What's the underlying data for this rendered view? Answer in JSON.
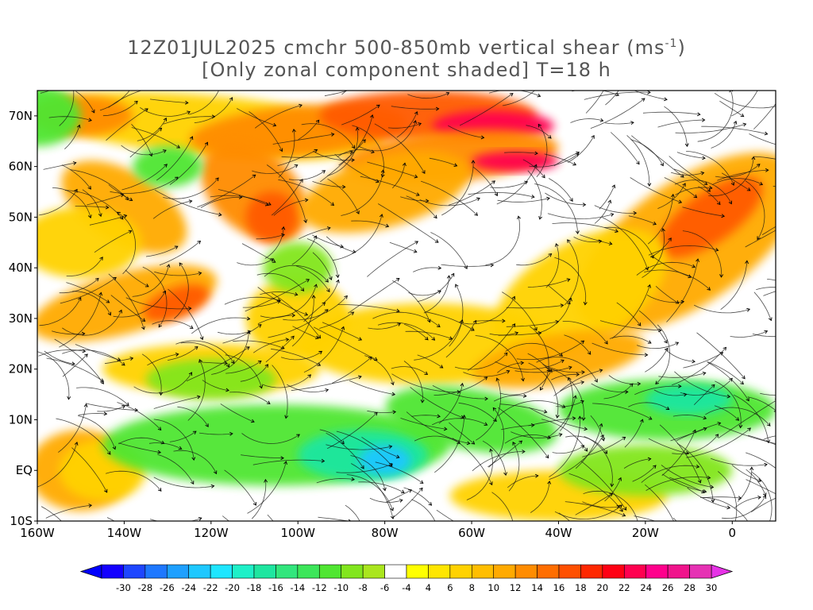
{
  "title": {
    "line1": "12Z01JUL2025 cmchr 500-850mb vertical shear (ms",
    "line1_sup": "-1",
    "line1_end": ")",
    "line2": "[Only zonal component shaded] T=18 h"
  },
  "axes": {
    "lat_labels": [
      "70N",
      "60N",
      "50N",
      "40N",
      "30N",
      "20N",
      "10N",
      "EQ",
      "10S"
    ],
    "lon_labels": [
      "160W",
      "140W",
      "120W",
      "100W",
      "80W",
      "60W",
      "40W",
      "20W",
      "0"
    ],
    "lon_range": [
      -160,
      10
    ],
    "lat_range": [
      -10,
      75
    ]
  },
  "colorbar": {
    "labels": [
      "-30",
      "-28",
      "-26",
      "-24",
      "-22",
      "-20",
      "-18",
      "-16",
      "-14",
      "-12",
      "-10",
      "-8",
      "-6",
      "-4",
      "4",
      "6",
      "8",
      "10",
      "12",
      "14",
      "16",
      "18",
      "20",
      "22",
      "24",
      "26",
      "28",
      "30"
    ],
    "colors": [
      "#1400ff",
      "#1e46ff",
      "#1e78ff",
      "#1ea0ff",
      "#1ec8ff",
      "#1ee6ff",
      "#1ef0c8",
      "#1ee6a0",
      "#32e67d",
      "#3ce65a",
      "#50e632",
      "#82e61e",
      "#aae61e",
      "#ffffff",
      "#ffff00",
      "#ffe600",
      "#ffd200",
      "#ffbe00",
      "#ffaa00",
      "#ff8c00",
      "#ff6e00",
      "#ff5000",
      "#ff2800",
      "#ff0014",
      "#ff0050",
      "#ff008c",
      "#f0148c",
      "#e632b4"
    ],
    "under_color": "#0000ff",
    "over_color": "#e632e6"
  },
  "field_colors": {
    "orange": "#ff8c00",
    "red_orange": "#ff5a00",
    "yellow": "#ffd200",
    "light_orange": "#ffaa00",
    "green": "#50e632",
    "light_green": "#82e61e",
    "teal": "#1ee6a0",
    "blue": "#1ec8ff",
    "magenta": "#ff0050"
  }
}
